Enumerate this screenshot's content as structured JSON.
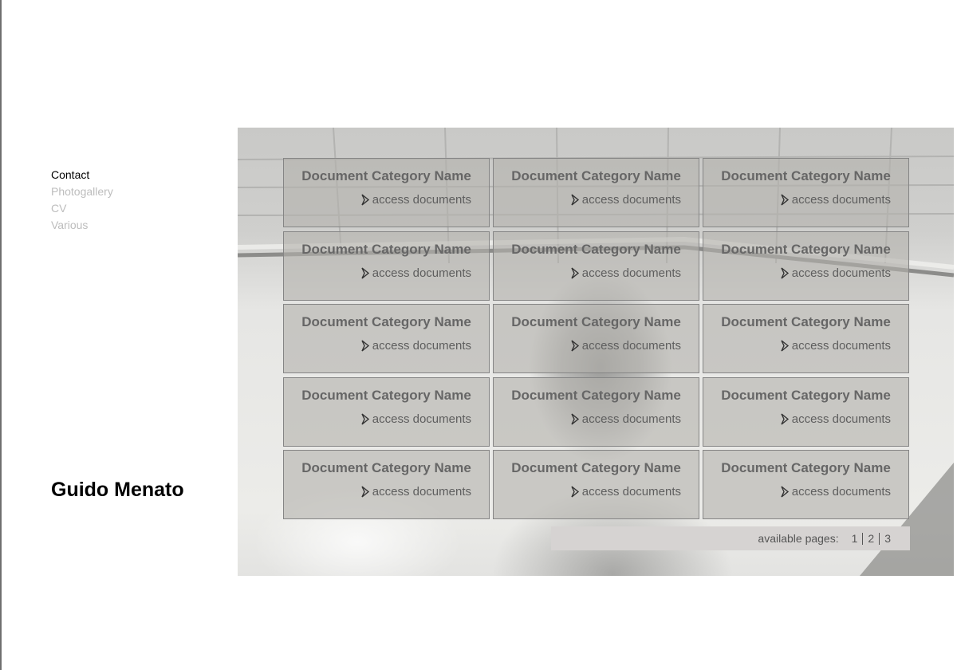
{
  "nav": {
    "items": [
      {
        "label": "Contact",
        "active": true
      },
      {
        "label": "Photogallery",
        "active": false
      },
      {
        "label": "CV",
        "active": false
      },
      {
        "label": "Various",
        "active": false
      }
    ]
  },
  "site": {
    "name": "Guido Menato"
  },
  "categories": [
    {
      "title": "Document Category Name",
      "link": "access documents"
    },
    {
      "title": "Document Category Name",
      "link": "access documents"
    },
    {
      "title": "Document Category Name",
      "link": "access documents"
    },
    {
      "title": "Document Category Name",
      "link": "access documents"
    },
    {
      "title": "Document Category Name",
      "link": "access documents"
    },
    {
      "title": "Document Category Name",
      "link": "access documents"
    },
    {
      "title": "Document Category Name",
      "link": "access documents"
    },
    {
      "title": "Document Category Name",
      "link": "access documents"
    },
    {
      "title": "Document Category Name",
      "link": "access documents"
    },
    {
      "title": "Document Category Name",
      "link": "access documents"
    },
    {
      "title": "Document Category Name",
      "link": "access documents"
    },
    {
      "title": "Document Category Name",
      "link": "access documents"
    },
    {
      "title": "Document Category Name",
      "link": "access documents"
    },
    {
      "title": "Document Category Name",
      "link": "access documents"
    },
    {
      "title": "Document Category Name",
      "link": "access documents"
    }
  ],
  "pagination": {
    "label": "available pages:",
    "pages": [
      "1",
      "2",
      "3"
    ]
  },
  "icons": {
    "link_arrow": "chevron-right-outline-icon"
  },
  "colors": {
    "nav_active": "#000000",
    "nav_inactive": "#bdbdbd",
    "card_text": "#666666",
    "pager_bg": "#d6d3d2"
  }
}
